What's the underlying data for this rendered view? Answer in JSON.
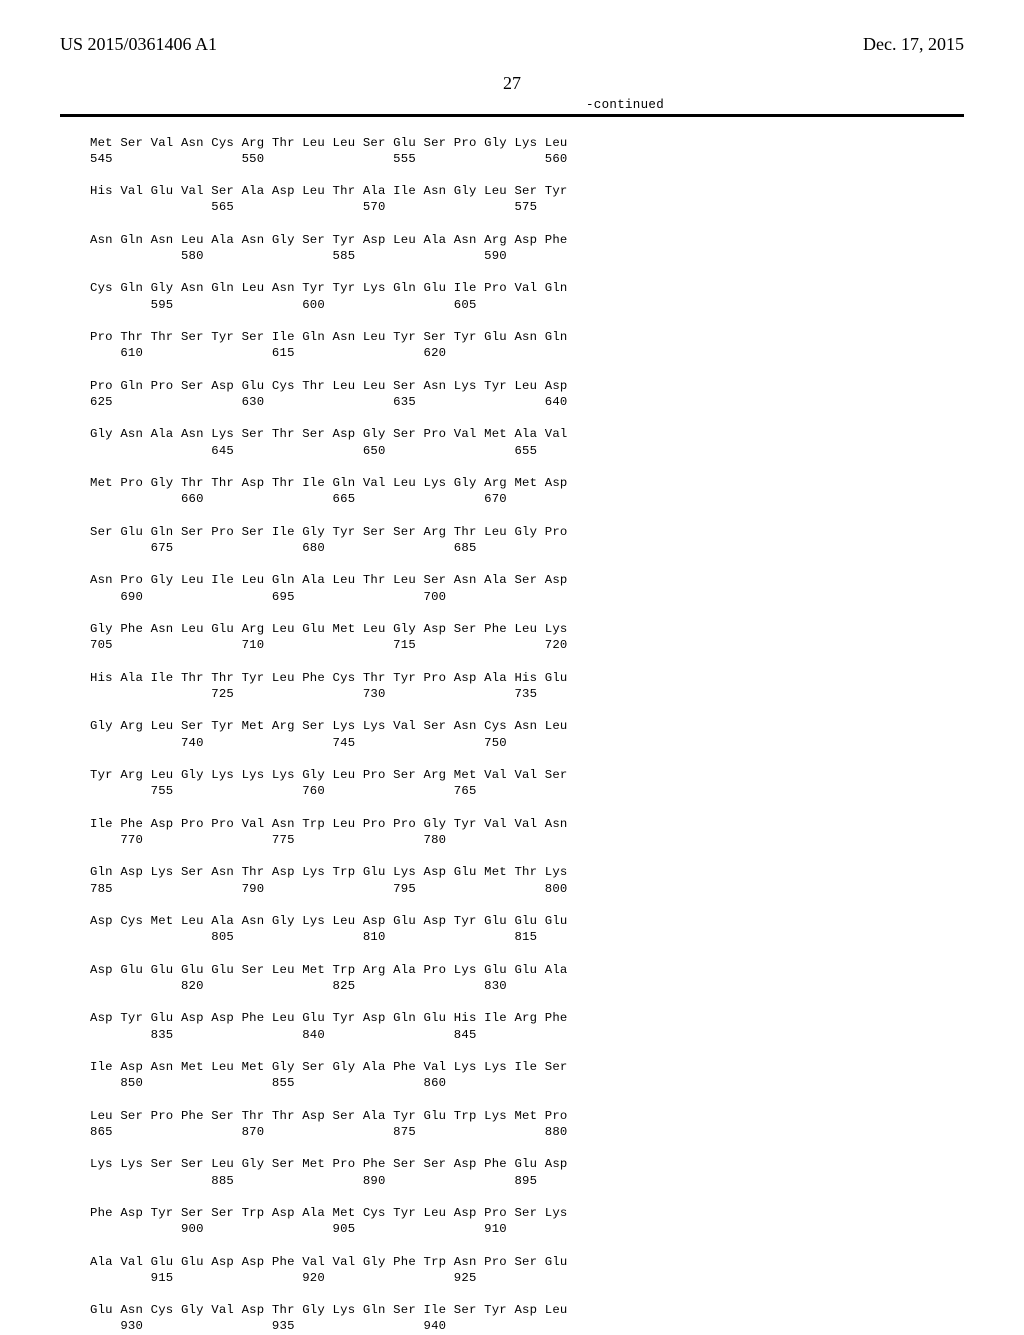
{
  "header": {
    "pubnum": "US 2015/0361406 A1",
    "pubdate": "Dec. 17, 2015",
    "pagenum": "27",
    "continued": "-continued"
  },
  "seq": {
    "lines": [
      "Met Ser Val Asn Cys Arg Thr Leu Leu Ser Glu Ser Pro Gly Lys Leu",
      "545                 550                 555                 560",
      "",
      "His Val Glu Val Ser Ala Asp Leu Thr Ala Ile Asn Gly Leu Ser Tyr",
      "                565                 570                 575    ",
      "",
      "Asn Gln Asn Leu Ala Asn Gly Ser Tyr Asp Leu Ala Asn Arg Asp Phe",
      "            580                 585                 590        ",
      "",
      "Cys Gln Gly Asn Gln Leu Asn Tyr Tyr Lys Gln Glu Ile Pro Val Gln",
      "        595                 600                 605            ",
      "",
      "Pro Thr Thr Ser Tyr Ser Ile Gln Asn Leu Tyr Ser Tyr Glu Asn Gln",
      "    610                 615                 620                ",
      "",
      "Pro Gln Pro Ser Asp Glu Cys Thr Leu Leu Ser Asn Lys Tyr Leu Asp",
      "625                 630                 635                 640",
      "",
      "Gly Asn Ala Asn Lys Ser Thr Ser Asp Gly Ser Pro Val Met Ala Val",
      "                645                 650                 655    ",
      "",
      "Met Pro Gly Thr Thr Asp Thr Ile Gln Val Leu Lys Gly Arg Met Asp",
      "            660                 665                 670        ",
      "",
      "Ser Glu Gln Ser Pro Ser Ile Gly Tyr Ser Ser Arg Thr Leu Gly Pro",
      "        675                 680                 685            ",
      "",
      "Asn Pro Gly Leu Ile Leu Gln Ala Leu Thr Leu Ser Asn Ala Ser Asp",
      "    690                 695                 700                ",
      "",
      "Gly Phe Asn Leu Glu Arg Leu Glu Met Leu Gly Asp Ser Phe Leu Lys",
      "705                 710                 715                 720",
      "",
      "His Ala Ile Thr Thr Tyr Leu Phe Cys Thr Tyr Pro Asp Ala His Glu",
      "                725                 730                 735    ",
      "",
      "Gly Arg Leu Ser Tyr Met Arg Ser Lys Lys Val Ser Asn Cys Asn Leu",
      "            740                 745                 750        ",
      "",
      "Tyr Arg Leu Gly Lys Lys Lys Gly Leu Pro Ser Arg Met Val Val Ser",
      "        755                 760                 765            ",
      "",
      "Ile Phe Asp Pro Pro Val Asn Trp Leu Pro Pro Gly Tyr Val Val Asn",
      "    770                 775                 780                ",
      "",
      "Gln Asp Lys Ser Asn Thr Asp Lys Trp Glu Lys Asp Glu Met Thr Lys",
      "785                 790                 795                 800",
      "",
      "Asp Cys Met Leu Ala Asn Gly Lys Leu Asp Glu Asp Tyr Glu Glu Glu",
      "                805                 810                 815    ",
      "",
      "Asp Glu Glu Glu Glu Ser Leu Met Trp Arg Ala Pro Lys Glu Glu Ala",
      "            820                 825                 830        ",
      "",
      "Asp Tyr Glu Asp Asp Phe Leu Glu Tyr Asp Gln Glu His Ile Arg Phe",
      "        835                 840                 845            ",
      "",
      "Ile Asp Asn Met Leu Met Gly Ser Gly Ala Phe Val Lys Lys Ile Ser",
      "    850                 855                 860                ",
      "",
      "Leu Ser Pro Phe Ser Thr Thr Asp Ser Ala Tyr Glu Trp Lys Met Pro",
      "865                 870                 875                 880",
      "",
      "Lys Lys Ser Ser Leu Gly Ser Met Pro Phe Ser Ser Asp Phe Glu Asp",
      "                885                 890                 895    ",
      "",
      "Phe Asp Tyr Ser Ser Trp Asp Ala Met Cys Tyr Leu Asp Pro Ser Lys",
      "            900                 905                 910        ",
      "",
      "Ala Val Glu Glu Asp Asp Phe Val Val Gly Phe Trp Asn Pro Ser Glu",
      "        915                 920                 925            ",
      "",
      "Glu Asn Cys Gly Val Asp Thr Gly Lys Gln Ser Ile Ser Tyr Asp Leu",
      "    930                 935                 940                "
    ]
  }
}
